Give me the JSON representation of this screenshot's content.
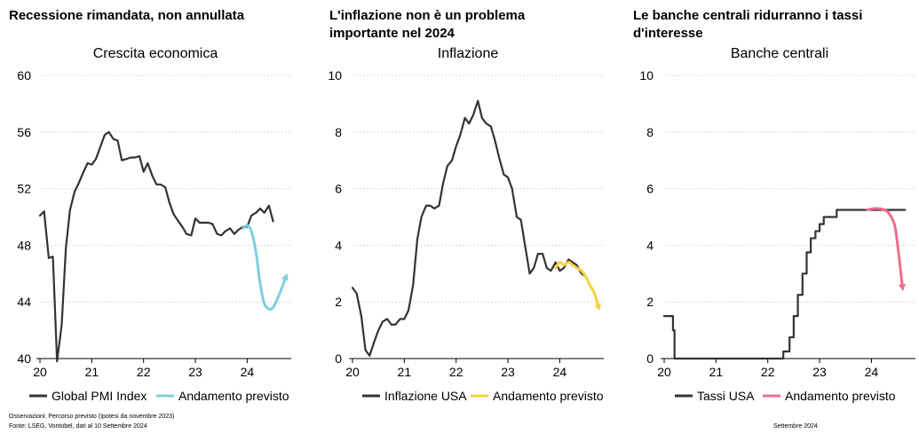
{
  "panels": [
    {
      "header": "Recessione rimandata, non annullata"
    },
    {
      "header": "L'inflazione non è un problema\nimportante nel 2024"
    },
    {
      "header": "Le banche centrali ridurranno i tassi\nd'interesse"
    }
  ],
  "footer": {
    "note": "Osservazioni: Percorso previsto (Ipotesi da novembre 2023)",
    "source": "Fonte: LSEG, Vontobel, dati al 10 Settembre 2024",
    "date": "Settembre 2024"
  },
  "colors": {
    "actual": "#333333",
    "forecast_growth": "#7ecfe0",
    "forecast_inflation": "#f6d33c",
    "forecast_rates": "#f06b8e"
  },
  "chart_data": [
    {
      "type": "line",
      "title": "Crescita economica",
      "ylim": [
        40,
        60
      ],
      "yticks": [
        40,
        44,
        48,
        52,
        56,
        60
      ],
      "xlim": [
        20,
        24.85
      ],
      "xticks": [
        20,
        21,
        22,
        23,
        24
      ],
      "xtick_labels": [
        "20",
        "21",
        "22",
        "23",
        "24"
      ],
      "grid": true,
      "legend_position": "bottom",
      "series": [
        {
          "name": "Global PMI Index",
          "color": "#333333",
          "arrow": false,
          "x": [
            20.0,
            20.08,
            20.17,
            20.25,
            20.33,
            20.42,
            20.5,
            20.58,
            20.67,
            20.75,
            20.83,
            20.92,
            21.0,
            21.08,
            21.17,
            21.25,
            21.33,
            21.42,
            21.5,
            21.58,
            21.67,
            21.75,
            21.83,
            21.92,
            22.0,
            22.08,
            22.17,
            22.25,
            22.33,
            22.42,
            22.5,
            22.58,
            22.67,
            22.75,
            22.83,
            22.92,
            23.0,
            23.08,
            23.17,
            23.25,
            23.33,
            23.42,
            23.5,
            23.58,
            23.67,
            23.75,
            23.83,
            23.92,
            24.0,
            24.08,
            24.17,
            24.25,
            24.33,
            24.42,
            24.5
          ],
          "y": [
            50.1,
            50.4,
            47.1,
            47.2,
            39.8,
            42.4,
            47.8,
            50.5,
            51.8,
            52.4,
            53.1,
            53.8,
            53.7,
            54.1,
            55.0,
            55.8,
            56.0,
            55.5,
            55.4,
            54.0,
            54.1,
            54.2,
            54.2,
            54.3,
            53.2,
            53.8,
            52.9,
            52.3,
            52.3,
            52.1,
            51.0,
            50.2,
            49.7,
            49.3,
            48.8,
            48.7,
            49.9,
            49.6,
            49.6,
            49.6,
            49.5,
            48.8,
            48.7,
            49.0,
            49.2,
            48.8,
            49.1,
            49.3,
            49.3,
            50.1,
            50.3,
            50.6,
            50.3,
            50.8,
            49.7
          ]
        },
        {
          "name": "Andamento previsto",
          "color": "#7ecfe0",
          "arrow": true,
          "x": [
            23.92,
            24.0,
            24.08,
            24.17,
            24.25,
            24.33,
            24.42,
            24.5,
            24.58,
            24.67,
            24.75
          ],
          "y": [
            49.2,
            49.4,
            49.0,
            47.5,
            45.3,
            43.9,
            43.5,
            43.6,
            44.2,
            45.0,
            45.8
          ]
        }
      ]
    },
    {
      "type": "line",
      "title": "Inflazione",
      "ylim": [
        0,
        10
      ],
      "yticks": [
        0,
        2,
        4,
        6,
        8,
        10
      ],
      "xlim": [
        20,
        24.85
      ],
      "xticks": [
        20,
        21,
        22,
        23,
        24
      ],
      "xtick_labels": [
        "20",
        "21",
        "22",
        "23",
        "24"
      ],
      "grid": true,
      "legend_position": "bottom",
      "series": [
        {
          "name": "Inflazione USA",
          "color": "#333333",
          "arrow": false,
          "x": [
            20.0,
            20.08,
            20.17,
            20.25,
            20.33,
            20.42,
            20.5,
            20.58,
            20.67,
            20.75,
            20.83,
            20.92,
            21.0,
            21.08,
            21.17,
            21.25,
            21.33,
            21.42,
            21.5,
            21.58,
            21.67,
            21.75,
            21.83,
            21.92,
            22.0,
            22.08,
            22.17,
            22.25,
            22.33,
            22.42,
            22.5,
            22.58,
            22.67,
            22.75,
            22.83,
            22.92,
            23.0,
            23.08,
            23.17,
            23.25,
            23.33,
            23.42,
            23.5,
            23.58,
            23.67,
            23.75,
            23.83,
            23.92,
            24.0,
            24.08,
            24.17,
            24.25,
            24.33,
            24.42,
            24.5
          ],
          "y": [
            2.5,
            2.3,
            1.5,
            0.3,
            0.1,
            0.6,
            1.0,
            1.3,
            1.4,
            1.2,
            1.2,
            1.4,
            1.4,
            1.7,
            2.6,
            4.2,
            5.0,
            5.4,
            5.4,
            5.3,
            5.4,
            6.2,
            6.8,
            7.0,
            7.5,
            7.9,
            8.5,
            8.3,
            8.6,
            9.1,
            8.5,
            8.3,
            8.2,
            7.7,
            7.1,
            6.5,
            6.4,
            6.0,
            5.0,
            4.9,
            4.0,
            3.0,
            3.2,
            3.7,
            3.7,
            3.2,
            3.1,
            3.4,
            3.1,
            3.2,
            3.5,
            3.4,
            3.3,
            3.0,
            2.9
          ]
        },
        {
          "name": "Andamento previsto",
          "color": "#f6d33c",
          "arrow": true,
          "x": [
            23.92,
            24.0,
            24.08,
            24.17,
            24.25,
            24.33,
            24.42,
            24.5,
            24.58,
            24.67,
            24.75
          ],
          "y": [
            3.2,
            3.4,
            3.3,
            3.4,
            3.3,
            3.2,
            3.1,
            2.9,
            2.6,
            2.3,
            1.8
          ]
        }
      ]
    },
    {
      "type": "line",
      "title": "Banche centrali",
      "ylim": [
        0,
        10
      ],
      "yticks": [
        0,
        2,
        4,
        6,
        8,
        10
      ],
      "xlim": [
        20,
        24.85
      ],
      "xticks": [
        20,
        21,
        22,
        23,
        24
      ],
      "xtick_labels": [
        "20",
        "21",
        "22",
        "23",
        "24"
      ],
      "grid": true,
      "legend_position": "bottom",
      "series": [
        {
          "name": "Tassi USA",
          "color": "#333333",
          "arrow": false,
          "step": true,
          "x": [
            20.0,
            20.17,
            20.2,
            22.2,
            22.3,
            22.42,
            22.5,
            22.58,
            22.67,
            22.75,
            22.83,
            22.92,
            23.0,
            23.08,
            23.17,
            23.25,
            23.33,
            23.42,
            23.5,
            23.58,
            24.0,
            24.5,
            24.65
          ],
          "y": [
            1.5,
            1.0,
            0.0,
            0.0,
            0.25,
            0.75,
            1.5,
            2.25,
            3.0,
            3.75,
            4.25,
            4.5,
            4.75,
            5.0,
            5.0,
            5.0,
            5.25,
            5.25,
            5.25,
            5.25,
            5.25,
            5.25,
            5.25
          ]
        },
        {
          "name": "Andamento previsto",
          "color": "#f06b8e",
          "arrow": true,
          "x": [
            23.92,
            24.08,
            24.25,
            24.35,
            24.45,
            24.52,
            24.6
          ],
          "y": [
            5.25,
            5.3,
            5.25,
            5.1,
            4.7,
            3.8,
            2.5
          ]
        }
      ]
    }
  ]
}
